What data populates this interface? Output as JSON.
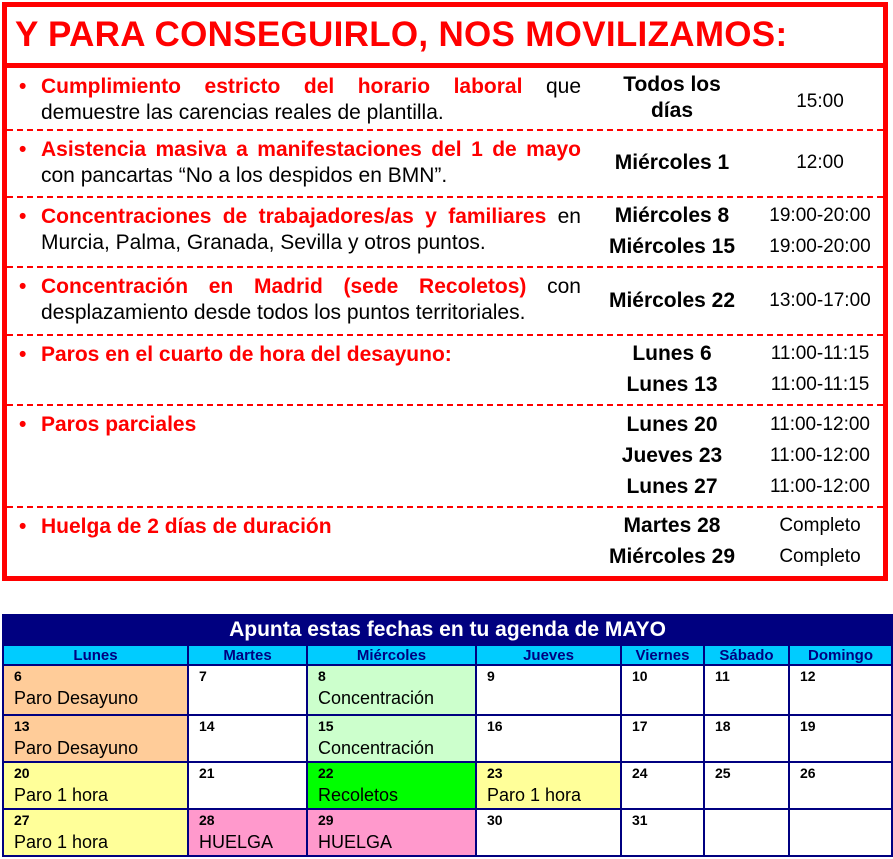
{
  "title": "Y PARA CONSEGUIRLO, NOS MOVILIZAMOS:",
  "actions": [
    {
      "red": "Cumplimiento estricto del horario laboral",
      "black": " que demuestre las carencias reales de plantilla.",
      "dates": [
        "Todos los días"
      ],
      "times": [
        "15:00"
      ]
    },
    {
      "red": "Asistencia masiva a manifestaciones del 1 de mayo",
      "black": " con pancartas “No a los despidos en BMN”.",
      "dates": [
        "Miércoles 1"
      ],
      "times": [
        "12:00"
      ]
    },
    {
      "red": "Concentraciones de trabajadores/as y familiares",
      "black": " en Murcia, Palma, Granada, Sevilla y otros puntos.",
      "dates": [
        "Miércoles 8",
        "Miércoles 15"
      ],
      "times": [
        "19:00-20:00",
        "19:00-20:00"
      ]
    },
    {
      "red": "Concentración en Madrid (sede Recoletos)",
      "black": " con desplazamiento desde todos los puntos territoriales.",
      "dates": [
        "Miércoles 22"
      ],
      "times": [
        "13:00-17:00"
      ]
    },
    {
      "red": "Paros en el cuarto de hora del desayuno:",
      "black": "",
      "dates": [
        "Lunes 6",
        "Lunes 13"
      ],
      "times": [
        "11:00-11:15",
        "11:00-11:15"
      ]
    },
    {
      "red": "Paros parciales",
      "black": "",
      "dates": [
        "Lunes 20",
        "Jueves 23",
        "Lunes 27"
      ],
      "times": [
        "11:00-12:00",
        "11:00-12:00",
        "11:00-12:00"
      ]
    },
    {
      "red": "Huelga de 2 días de duración",
      "black": "",
      "dates": [
        "Martes 28",
        "Miércoles 29"
      ],
      "times": [
        "Completo",
        "Completo"
      ]
    }
  ],
  "calendar": {
    "title": "Apunta estas fechas en tu agenda de MAYO",
    "weekdays": [
      "Lunes",
      "Martes",
      "Miércoles",
      "Jueves",
      "Viernes",
      "Sábado",
      "Domingo"
    ],
    "colors": {
      "desayuno": "#ffcc99",
      "concentracion": "#ccffcc",
      "paro": "#ffff99",
      "recoletos": "#00ff00",
      "huelga": "#ff99cc"
    },
    "weeks": [
      [
        {
          "day": "6",
          "label": "Paro Desayuno",
          "type": "desayuno"
        },
        {
          "day": "7"
        },
        {
          "day": "8",
          "label": "Concentración",
          "type": "concentracion"
        },
        {
          "day": "9"
        },
        {
          "day": "10"
        },
        {
          "day": "11"
        },
        {
          "day": "12"
        }
      ],
      [
        {
          "day": "13",
          "label": "Paro Desayuno",
          "type": "desayuno"
        },
        {
          "day": "14"
        },
        {
          "day": "15",
          "label": "Concentración",
          "type": "concentracion"
        },
        {
          "day": "16"
        },
        {
          "day": "17"
        },
        {
          "day": "18"
        },
        {
          "day": "19"
        }
      ],
      [
        {
          "day": "20",
          "label": "Paro 1 hora",
          "type": "paro"
        },
        {
          "day": "21"
        },
        {
          "day": "22",
          "label": "Recoletos",
          "type": "recoletos"
        },
        {
          "day": "23",
          "label": "Paro 1 hora",
          "type": "paro"
        },
        {
          "day": "24"
        },
        {
          "day": "25"
        },
        {
          "day": "26"
        }
      ],
      [
        {
          "day": "27",
          "label": "Paro 1 hora",
          "type": "paro"
        },
        {
          "day": "28",
          "label": "HUELGA",
          "type": "huelga"
        },
        {
          "day": "29",
          "label": "HUELGA",
          "type": "huelga"
        },
        {
          "day": "30"
        },
        {
          "day": "31"
        },
        {
          "day": ""
        },
        {
          "day": ""
        }
      ]
    ]
  }
}
